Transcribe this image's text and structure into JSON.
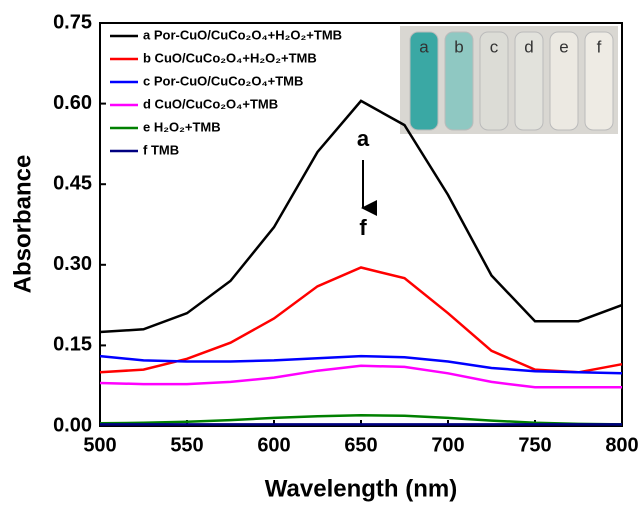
{
  "chart_data": {
    "type": "line",
    "x_label": "Wavelength (nm)",
    "y_label": "Absorbance",
    "x": [
      500,
      525,
      550,
      575,
      600,
      625,
      650,
      675,
      700,
      725,
      750,
      775,
      800
    ],
    "series": [
      {
        "name": "a Por-CuO/CuCo₂O₄+H₂O₂+TMB",
        "color": "#000000",
        "values": [
          0.175,
          0.18,
          0.21,
          0.27,
          0.37,
          0.51,
          0.605,
          0.56,
          0.43,
          0.28,
          0.195,
          0.195,
          0.225
        ]
      },
      {
        "name": "b CuO/CuCo₂O₄+H₂O₂+TMB",
        "color": "#ff0000",
        "values": [
          0.1,
          0.105,
          0.125,
          0.155,
          0.2,
          0.26,
          0.295,
          0.275,
          0.21,
          0.14,
          0.105,
          0.1,
          0.115
        ]
      },
      {
        "name": "c Por-CuO/CuCo₂O₄+TMB",
        "color": "#0000ff",
        "values": [
          0.13,
          0.122,
          0.12,
          0.12,
          0.122,
          0.126,
          0.13,
          0.128,
          0.12,
          0.108,
          0.102,
          0.1,
          0.098
        ]
      },
      {
        "name": "d CuO/CuCo₂O₄+TMB",
        "color": "#ff00ff",
        "values": [
          0.08,
          0.078,
          0.078,
          0.082,
          0.09,
          0.103,
          0.112,
          0.11,
          0.098,
          0.082,
          0.072,
          0.072,
          0.072
        ]
      },
      {
        "name": "e H₂O₂+TMB",
        "color": "#008000",
        "values": [
          0.005,
          0.006,
          0.008,
          0.011,
          0.015,
          0.018,
          0.02,
          0.019,
          0.015,
          0.01,
          0.006,
          0.004,
          0.003
        ]
      },
      {
        "name": "f TMB",
        "color": "#000080",
        "values": [
          0.003,
          0.003,
          0.003,
          0.003,
          0.003,
          0.003,
          0.003,
          0.003,
          0.003,
          0.003,
          0.003,
          0.003,
          0.003
        ]
      }
    ],
    "xlim": [
      500,
      800
    ],
    "xticks": [
      500,
      550,
      600,
      650,
      700,
      750,
      800
    ],
    "ylim": [
      0,
      0.75
    ],
    "yticks": [
      {
        "value": 0,
        "label": "0.00"
      },
      0.15,
      {
        "value": 0.3,
        "label": "0.30"
      },
      0.45,
      {
        "value": 0.6,
        "label": "0.60"
      },
      {
        "value": 0.75,
        "label": "0.75"
      }
    ],
    "annotations": [
      "a",
      "f"
    ],
    "inset_labels": [
      "a",
      "b",
      "c",
      "d",
      "e",
      "f"
    ],
    "legend": "upper left",
    "grid": false
  }
}
